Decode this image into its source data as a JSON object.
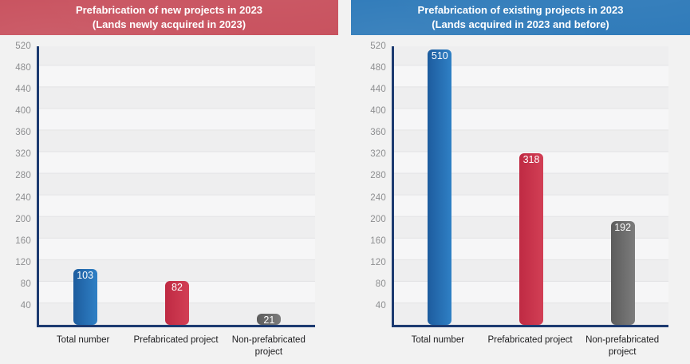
{
  "chart_data": [
    {
      "type": "bar",
      "title": "Prefabrication of new projects in 2023",
      "subtitle": "(Lands newly acquired in 2023)",
      "header_color": "#c74e5b",
      "categories": [
        "Total number",
        "Prefabricated project",
        "Non-prefabricated project"
      ],
      "values": [
        103,
        82,
        21
      ],
      "bar_colors": [
        {
          "name": "blue",
          "from": "#1d5c9e",
          "to": "#2f80c5"
        },
        {
          "name": "red",
          "from": "#bf2a43",
          "to": "#d23f55"
        },
        {
          "name": "gray",
          "from": "#5c5c5c",
          "to": "#7c7c7c"
        }
      ],
      "ylim": [
        0,
        520
      ],
      "ytick_step": 40,
      "grid": true,
      "legend": "none",
      "value_labels": "inside-top"
    },
    {
      "type": "bar",
      "title": "Prefabrication of existing projects in 2023",
      "subtitle": "(Lands acquired in 2023 and before)",
      "header_color": "#2b78b8",
      "categories": [
        "Total number",
        "Prefabricated project",
        "Non-prefabricated project"
      ],
      "values": [
        510,
        318,
        192
      ],
      "bar_colors": [
        {
          "name": "blue",
          "from": "#1d5c9e",
          "to": "#2f80c5"
        },
        {
          "name": "red",
          "from": "#bf2a43",
          "to": "#d23f55"
        },
        {
          "name": "gray",
          "from": "#5c5c5c",
          "to": "#7c7c7c"
        }
      ],
      "ylim": [
        0,
        520
      ],
      "ytick_step": 40,
      "grid": true,
      "legend": "none",
      "value_labels": "inside-top"
    }
  ],
  "styles": {
    "page_bg": "#f2f2f2",
    "axis_color": "#1c3a70",
    "grid_color": "#e3e3e5",
    "band_dark": "#eeeeef",
    "band_light": "#f6f6f7",
    "tick_label_color": "#8d8e90",
    "category_label_color": "#1d1d1f"
  }
}
